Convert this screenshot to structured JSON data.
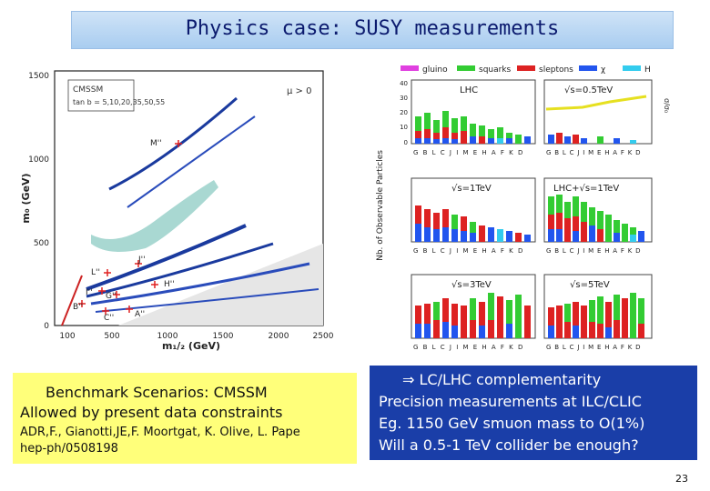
{
  "title": "Physics case: SUSY measurements",
  "left_plot": {
    "box_text1": "CMSSM",
    "box_text2": "tan b = 5,10,20,35,50,55",
    "mu_label": "μ > 0",
    "y_axis_label": "m₀ (GeV)",
    "x_axis_label": "m₁/₂ (GeV)",
    "y_ticks": [
      "0",
      "500",
      "1000",
      "1500"
    ],
    "x_ticks": [
      "100",
      "500",
      "1000",
      "1500",
      "2000",
      "2500"
    ],
    "points": [
      "M''",
      "L''",
      "J''",
      "I''",
      "G''",
      "B''",
      "C''",
      "H''",
      "A''"
    ]
  },
  "right_plot": {
    "legend": [
      "gluino",
      "squarks",
      "sleptons",
      "χ",
      "H"
    ],
    "y_axis_label": "Nb. of Observable Particles",
    "x_labels": "G B L C J I M E H A F K D",
    "panels": [
      "LHC",
      "√s=0.5TeV",
      "√s=1TeV",
      "LHC+√s=1TeV",
      "√s=3TeV",
      "√s=5TeV"
    ],
    "y_ticks": [
      "0",
      "10",
      "20",
      "30",
      "40"
    ],
    "ratio_label": "σ/σ₀"
  },
  "benchmark": {
    "line1": "Benchmark Scenarios: CMSSM",
    "line2": "Allowed by present data constraints",
    "line3": "ADR,F., Gianotti,JE,F. Moortgat, K. Olive, L. Pape",
    "line4": "hep-ph/0508198"
  },
  "complementarity": {
    "line1": "⇒ LC/LHC complementarity",
    "line2": "Precision measurements at ILC/CLIC",
    "line3": "Eg. 1150 GeV smuon mass to O(1%)",
    "line4": "Will a 0.5-1 TeV collider be enough?"
  },
  "page_number": "23",
  "colors": {
    "gluino": "#e040e0",
    "squarks": "#33cc33",
    "sleptons": "#dd2222",
    "chi": "#2255ee",
    "higgs": "#33ccee"
  }
}
